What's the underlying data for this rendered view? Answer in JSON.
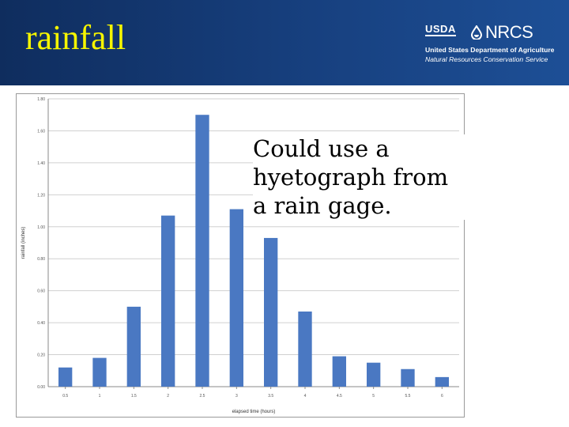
{
  "slide": {
    "title": "rainfall",
    "note": "Could use a hyetograph from a rain gage."
  },
  "logo": {
    "agency": "USDA",
    "service_abbr": "NRCS",
    "line1": "United States Department of Agriculture",
    "line2": "Natural Resources Conservation Service"
  },
  "colors": {
    "header_bg": "#17407f",
    "title": "#f5f500",
    "bar": "#4a78c2",
    "grid": "#d0d0d0"
  },
  "chart_data": {
    "type": "bar",
    "categories": [
      "0.5",
      "1",
      "1.5",
      "2",
      "2.5",
      "3",
      "3.5",
      "4",
      "4.5",
      "5",
      "5.5",
      "6"
    ],
    "values": [
      0.12,
      0.18,
      0.5,
      1.07,
      1.7,
      1.11,
      0.93,
      0.47,
      0.19,
      0.15,
      0.11,
      0.06
    ],
    "ytick_labels": [
      "0.00",
      "0.20",
      "0.40",
      "0.60",
      "0.80",
      "1.00",
      "1.20",
      "1.40",
      "1.60",
      "1.80"
    ],
    "xlabel": "elapsed time (hours)",
    "ylabel": "rainfall (inches)",
    "ylim": [
      0,
      1.8
    ],
    "grid": true,
    "legend": false
  }
}
